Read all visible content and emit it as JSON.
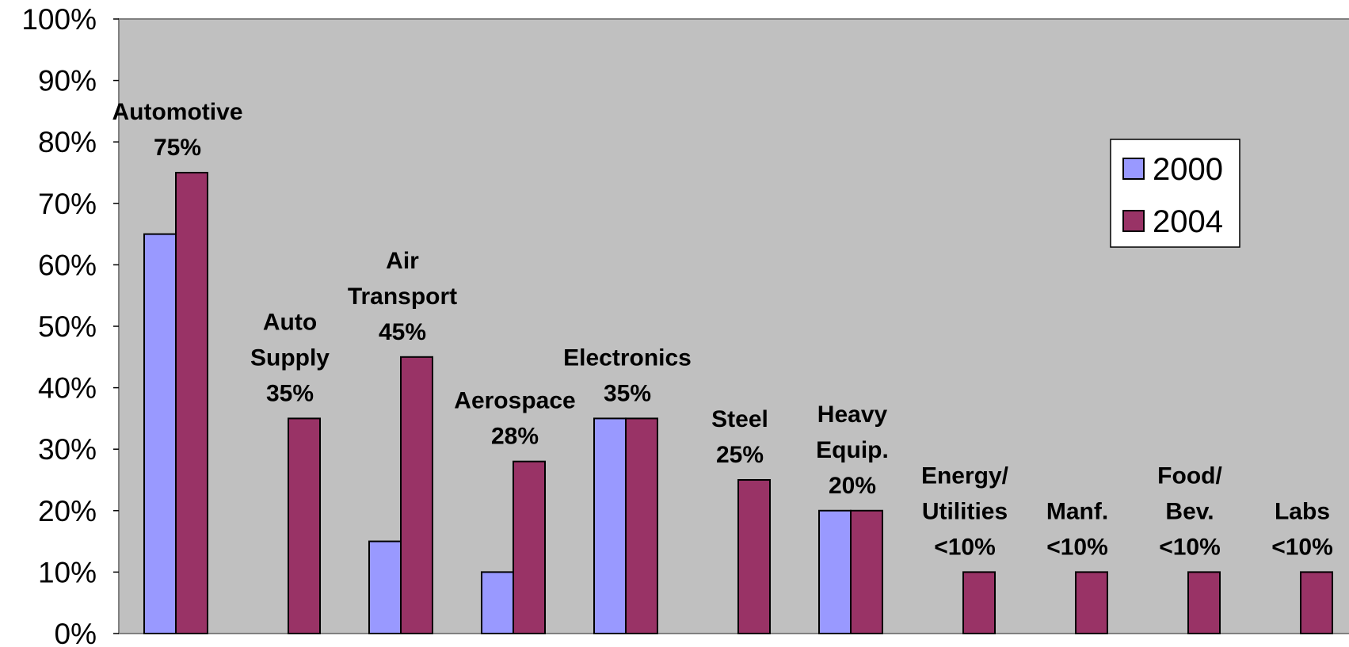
{
  "chart_data": {
    "type": "bar",
    "title": "",
    "xlabel": "",
    "ylabel": "",
    "ylim": [
      0,
      100
    ],
    "y_ticks": [
      "0%",
      "10%",
      "20%",
      "30%",
      "40%",
      "50%",
      "60%",
      "70%",
      "80%",
      "90%",
      "100%"
    ],
    "y_tick_values": [
      0,
      10,
      20,
      30,
      40,
      50,
      60,
      70,
      80,
      90,
      100
    ],
    "legend_position": "right",
    "grid": false,
    "plot_background": "#c0c0c0",
    "categories": [
      {
        "label_lines": [
          "Automotive",
          "75%"
        ]
      },
      {
        "label_lines": [
          "Auto",
          "Supply",
          "35%"
        ]
      },
      {
        "label_lines": [
          "Air",
          "Transport",
          "45%"
        ]
      },
      {
        "label_lines": [
          "Aerospace",
          "28%"
        ]
      },
      {
        "label_lines": [
          "Electronics",
          "35%"
        ]
      },
      {
        "label_lines": [
          "Steel",
          "25%"
        ]
      },
      {
        "label_lines": [
          "Heavy",
          "Equip.",
          "20%"
        ]
      },
      {
        "label_lines": [
          "Energy/",
          "Utilities",
          "<10%"
        ]
      },
      {
        "label_lines": [
          "Manf.",
          "<10%"
        ]
      },
      {
        "label_lines": [
          "Food/",
          "Bev.",
          "<10%"
        ]
      },
      {
        "label_lines": [
          "Labs",
          "<10%"
        ]
      }
    ],
    "series": [
      {
        "name": "2000",
        "color": "#9999ff",
        "values": [
          65,
          null,
          15,
          10,
          35,
          null,
          20,
          null,
          null,
          null,
          null
        ]
      },
      {
        "name": "2004",
        "color": "#993366",
        "values": [
          75,
          35,
          45,
          28,
          35,
          25,
          20,
          10,
          10,
          10,
          10
        ]
      }
    ]
  }
}
